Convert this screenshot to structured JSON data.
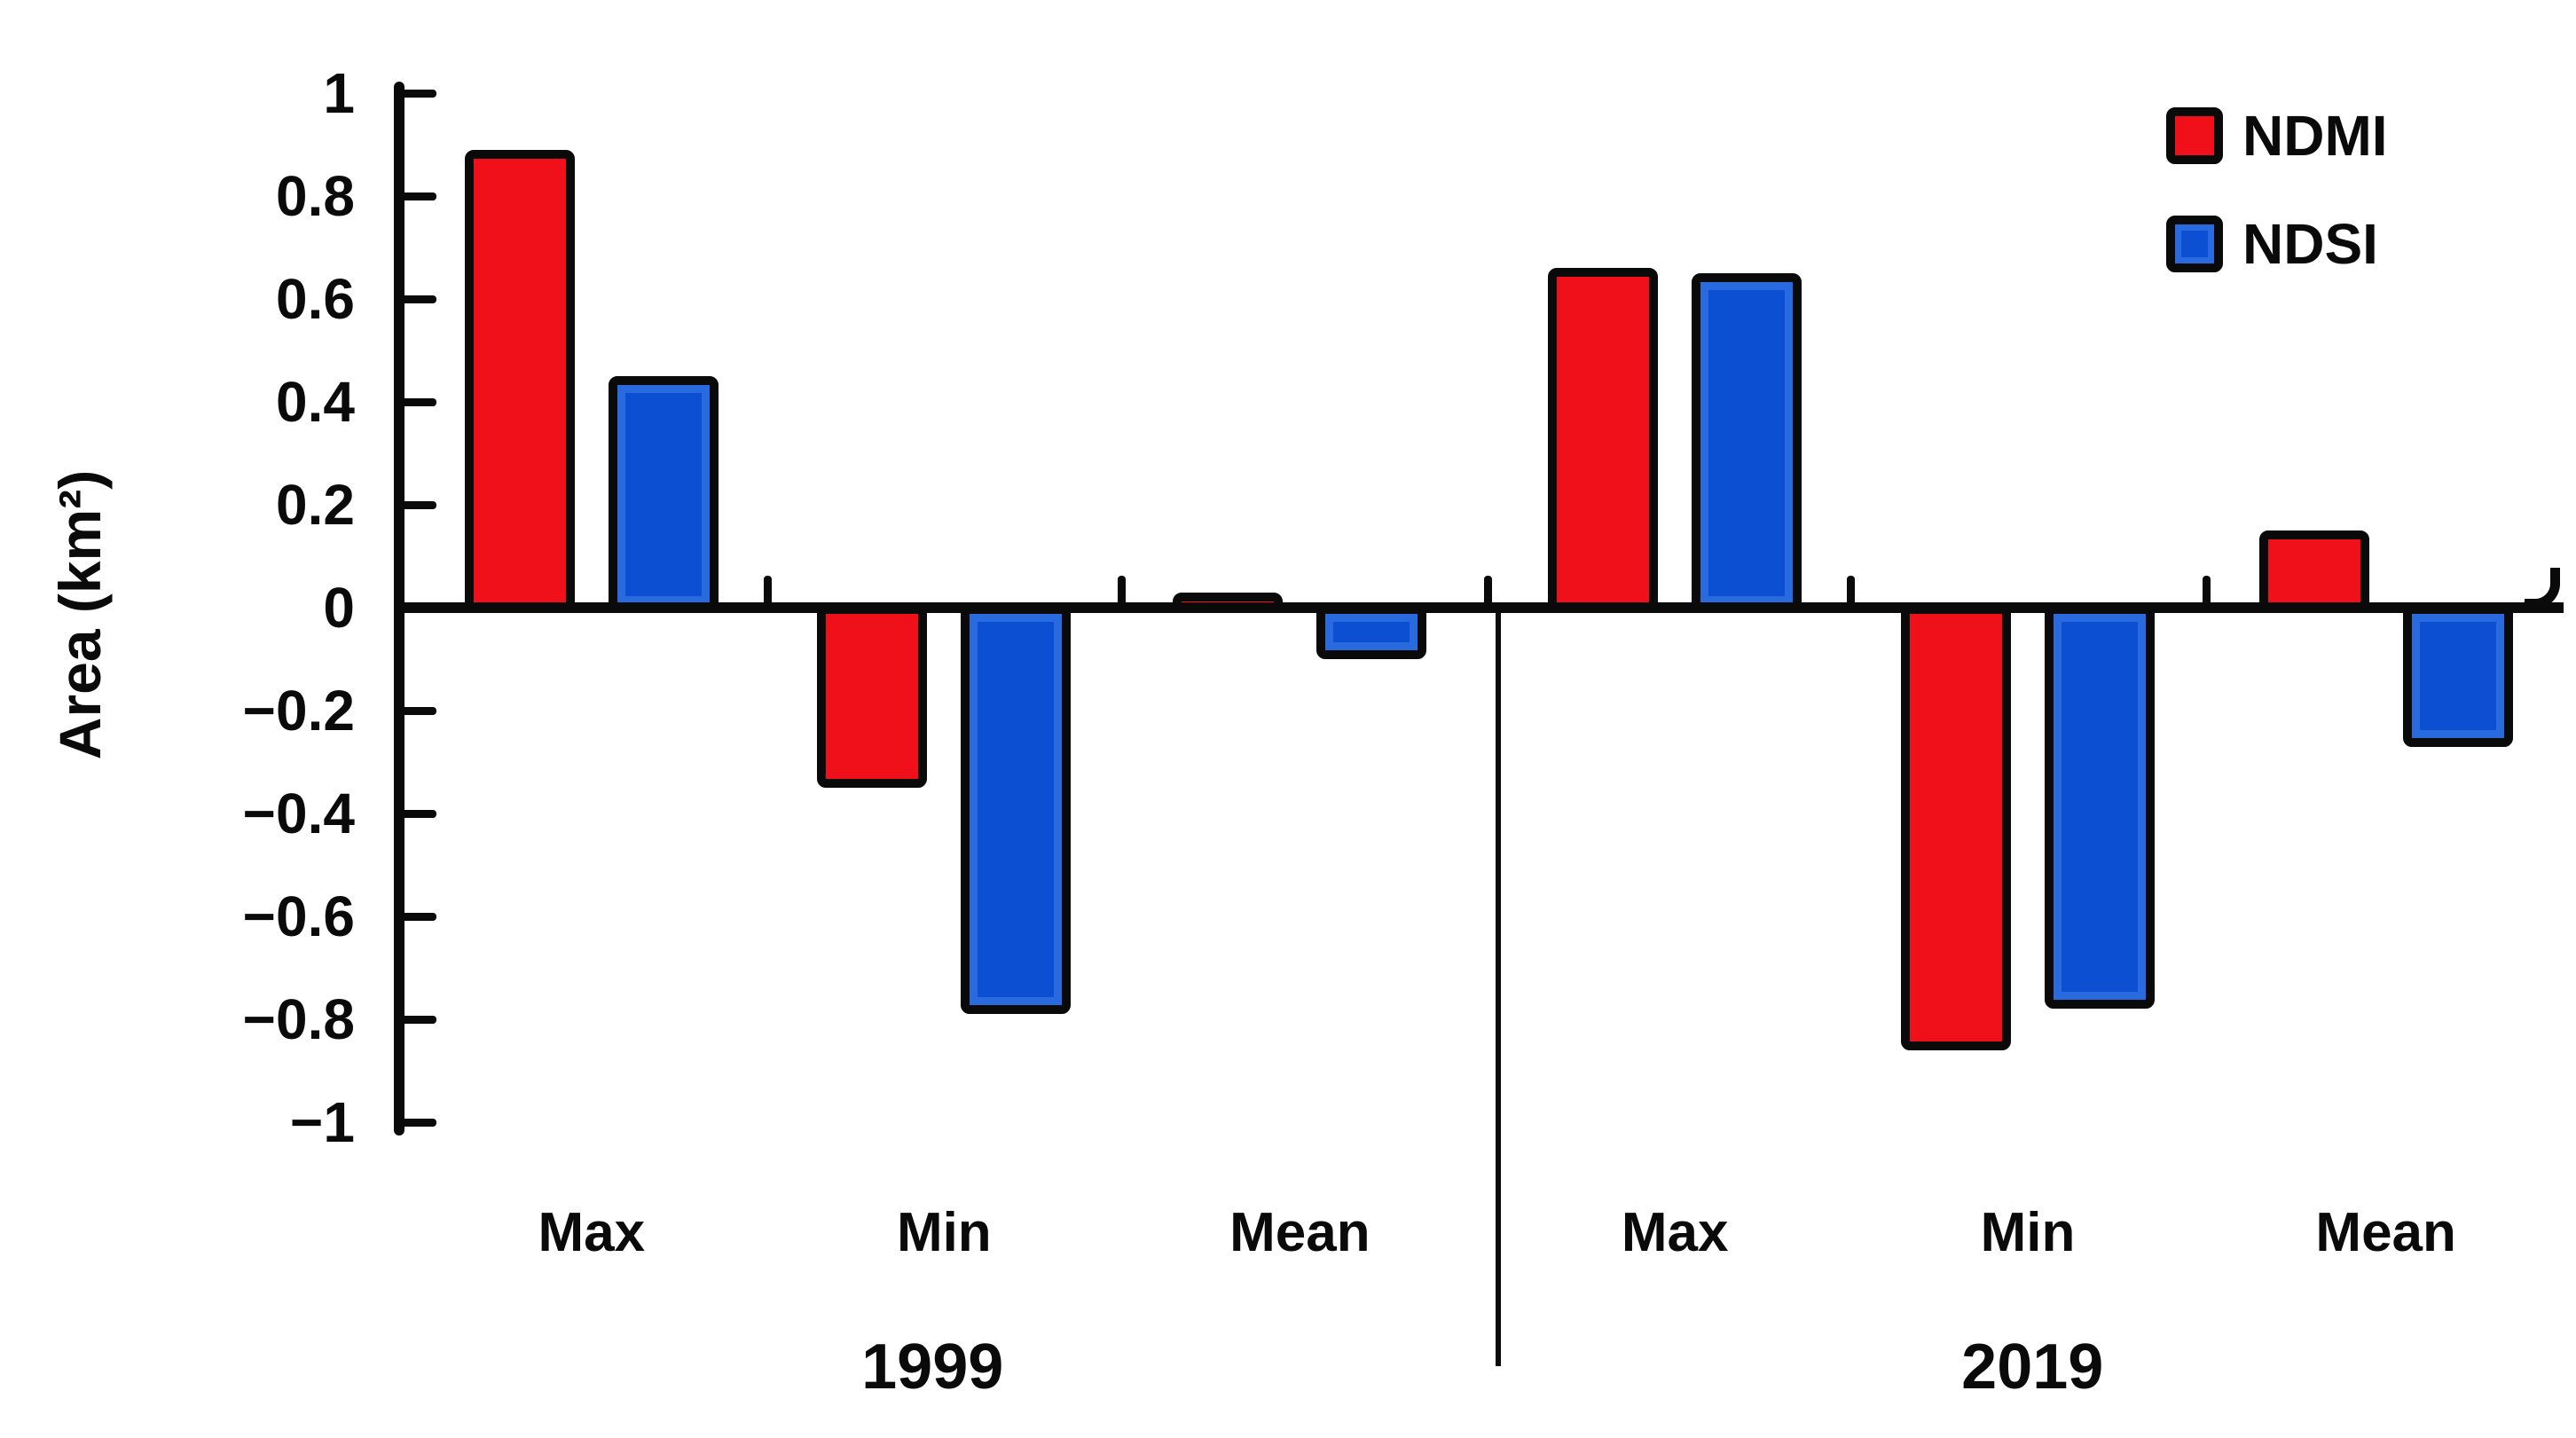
{
  "chart_data": {
    "type": "bar",
    "title": "",
    "ylabel": "Area (km²)",
    "xlabel": "",
    "ylim": [
      -1,
      1
    ],
    "grid": false,
    "legend_position": "top-right",
    "bar_outline_color": "#0a0a0a",
    "yticks": [
      {
        "value": 1,
        "label": "1"
      },
      {
        "value": 0.8,
        "label": "0.8"
      },
      {
        "value": 0.6,
        "label": "0.6"
      },
      {
        "value": 0.4,
        "label": "0.4"
      },
      {
        "value": 0.2,
        "label": "0.2"
      },
      {
        "value": 0,
        "label": "0"
      },
      {
        "value": -0.2,
        "label": "−0.2"
      },
      {
        "value": -0.4,
        "label": "−0.4"
      },
      {
        "value": -0.6,
        "label": "−0.6"
      },
      {
        "value": -0.8,
        "label": "−0.8"
      },
      {
        "value": -1,
        "label": "−1"
      }
    ],
    "groups": [
      {
        "label": "1999",
        "categories": [
          "Max",
          "Min",
          "Mean"
        ]
      },
      {
        "label": "2019",
        "categories": [
          "Max",
          "Min",
          "Mean"
        ]
      }
    ],
    "series": [
      {
        "name": "NDMI",
        "color": "#f0101a",
        "values": [
          0.89,
          -0.35,
          0.03,
          0.66,
          -0.86,
          0.15
        ]
      },
      {
        "name": "NDSI",
        "color": "#0c4fd2",
        "values": [
          0.45,
          -0.79,
          -0.1,
          0.65,
          -0.78,
          -0.27
        ]
      }
    ]
  }
}
